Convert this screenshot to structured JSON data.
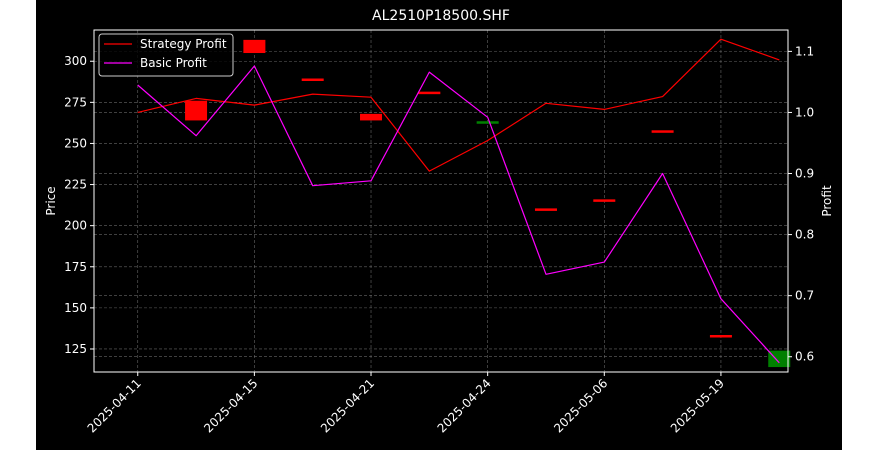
{
  "chart_data": {
    "type": "line",
    "title": "AL2510P18500.SHF",
    "xlabel": "",
    "ylabel": "Price",
    "y2label": "Profit",
    "x_tick_labels": [
      "2025-04-11",
      "2025-04-15",
      "2025-04-21",
      "2025-04-24",
      "2025-05-06",
      "2025-05-19"
    ],
    "x_tick_positions": [
      0,
      2,
      4,
      6,
      8,
      10
    ],
    "xlim": [
      -0.75,
      11.15
    ],
    "ylim": [
      111,
      319
    ],
    "y_ticks": [
      125,
      150,
      175,
      200,
      225,
      250,
      275,
      300
    ],
    "y2lim": [
      0.575,
      1.135
    ],
    "y2_ticks": [
      0.6,
      0.7,
      0.8,
      0.9,
      1.0,
      1.1
    ],
    "grid": true,
    "legend_position": "upper-left",
    "background": "#000000",
    "candles": [
      {
        "x": 1,
        "open": 276,
        "close": 264,
        "color": "#ff0000"
      },
      {
        "x": 2,
        "open": 313,
        "close": 305,
        "color": "#ff0000"
      },
      {
        "x": 3,
        "open": 289.5,
        "close": 289,
        "color": "#ff0000"
      },
      {
        "x": 4,
        "open": 268,
        "close": 264,
        "color": "#ff0000"
      },
      {
        "x": 5,
        "open": 281.5,
        "close": 281,
        "color": "#ff0000"
      },
      {
        "x": 6,
        "open": 262,
        "close": 263.5,
        "color": "#008000"
      },
      {
        "x": 7,
        "open": 210.5,
        "close": 210,
        "color": "#ff0000"
      },
      {
        "x": 8,
        "open": 216,
        "close": 215.5,
        "color": "#ff0000"
      },
      {
        "x": 9,
        "open": 258,
        "close": 257.5,
        "color": "#ff0000"
      },
      {
        "x": 10,
        "open": 133.5,
        "close": 133,
        "color": "#ff0000"
      },
      {
        "x": 11,
        "open": 114,
        "close": 124,
        "color": "#008000"
      }
    ],
    "series": [
      {
        "name": "Strategy Profit",
        "color": "#ff0000",
        "axis": "right",
        "x": [
          0,
          1,
          2,
          3,
          4,
          5,
          6,
          7,
          8,
          9,
          10,
          11
        ],
        "values": [
          1.0,
          1.023,
          1.012,
          1.03,
          1.025,
          0.904,
          0.954,
          1.015,
          1.005,
          1.026,
          1.12,
          1.086
        ]
      },
      {
        "name": "Basic Profit",
        "color": "#ff00ff",
        "axis": "right",
        "x": [
          0,
          1,
          2,
          3,
          4,
          5,
          6,
          7,
          8,
          9,
          10,
          11
        ],
        "values": [
          1.045,
          0.962,
          1.076,
          0.88,
          0.888,
          1.066,
          0.992,
          0.735,
          0.755,
          0.9,
          0.695,
          0.59
        ]
      }
    ]
  }
}
